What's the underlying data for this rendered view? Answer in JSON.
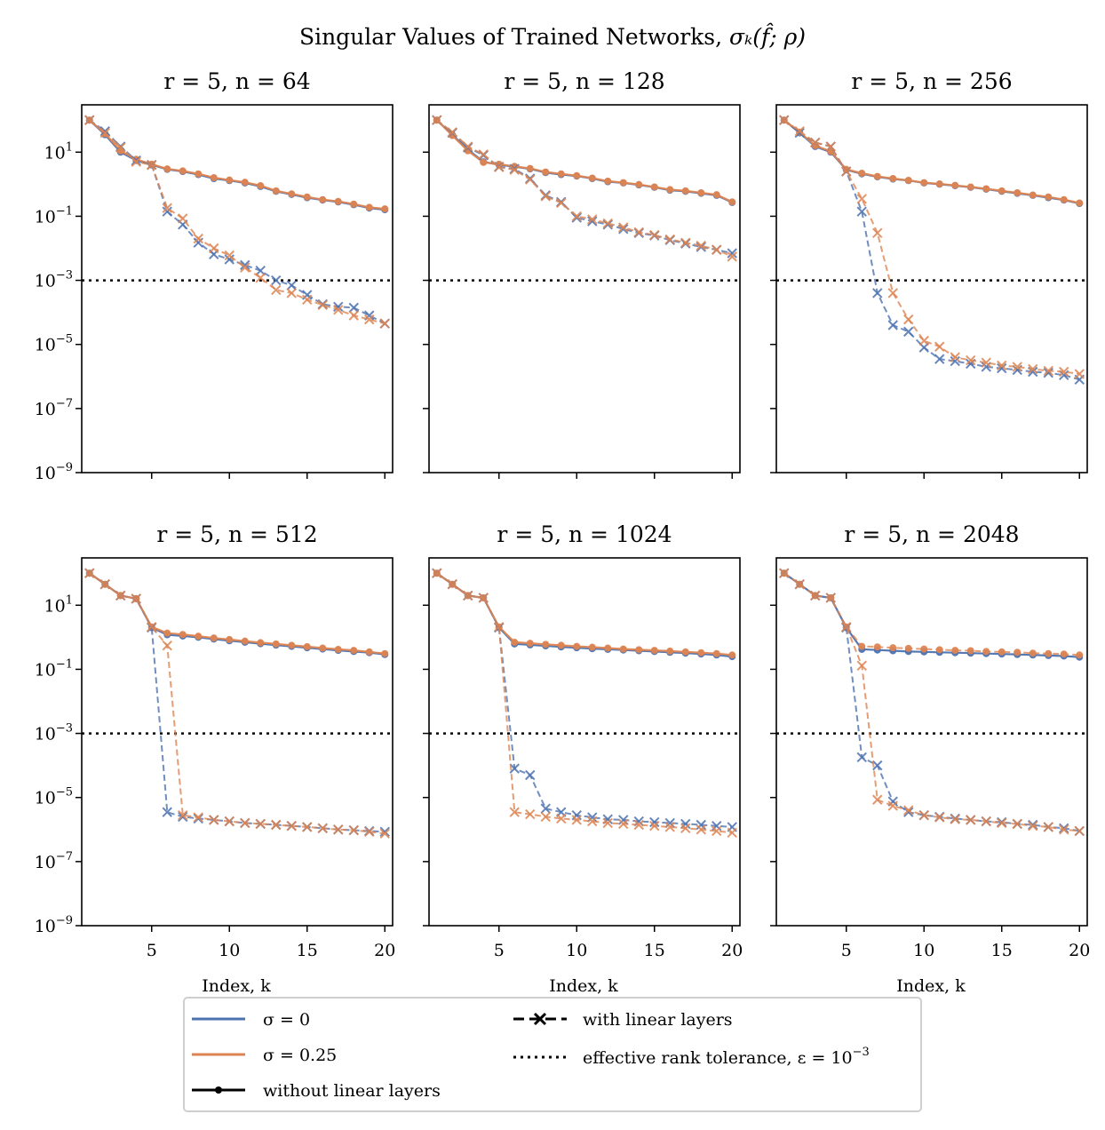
{
  "figure": {
    "suptitle_main": "Singular Values of Trained Networks, ",
    "suptitle_math": "σₖ(f̂; ρ)",
    "xlabel": "Index, k",
    "colors": {
      "sigma0": "#4c72b0",
      "sigma025": "#dd8452",
      "tolerance": "#000000"
    },
    "legend": {
      "sigma0": "σ = 0",
      "sigma025": "σ = 0.25",
      "without_linear": "without linear layers",
      "with_linear": "with linear layers",
      "tolerance": "effective rank tolerance, ε = 10",
      "tolerance_exp": "−3"
    }
  },
  "chart_data": [
    {
      "type": "line",
      "title": "r = 5, n = 64",
      "yscale": "log",
      "ylim": [
        1e-09,
        300
      ],
      "xlim": [
        0.5,
        20.5
      ],
      "xticks": [
        5,
        10,
        15,
        20
      ],
      "yticks_exp": [
        1,
        -1,
        -3,
        -5,
        -7,
        -9
      ],
      "tolerance": 0.001,
      "x": [
        1,
        2,
        3,
        4,
        5,
        6,
        7,
        8,
        9,
        10,
        11,
        12,
        13,
        14,
        15,
        16,
        17,
        18,
        19,
        20
      ],
      "series": [
        {
          "name": "σ = 0, without linear layers",
          "color": "sigma0",
          "style": "solid",
          "marker": "dot",
          "values": [
            100,
            35,
            10,
            5.5,
            4,
            2.9,
            2.5,
            2,
            1.5,
            1.3,
            1.1,
            0.85,
            0.6,
            0.48,
            0.38,
            0.32,
            0.28,
            0.23,
            0.18,
            0.16
          ]
        },
        {
          "name": "σ = 0.25, without linear layers",
          "color": "sigma025",
          "style": "solid",
          "marker": "dot",
          "values": [
            100,
            38,
            11,
            6,
            4.2,
            3,
            2.6,
            2.1,
            1.6,
            1.35,
            1.15,
            0.9,
            0.62,
            0.5,
            0.4,
            0.33,
            0.29,
            0.24,
            0.19,
            0.17
          ]
        },
        {
          "name": "σ = 0, with linear layers",
          "color": "sigma0",
          "style": "dashed",
          "marker": "x",
          "values": [
            100,
            45,
            15,
            5.5,
            4,
            0.14,
            0.055,
            0.015,
            0.0065,
            0.0045,
            0.003,
            0.002,
            0.001,
            0.0007,
            0.00035,
            0.00018,
            0.00015,
            0.00014,
            8e-05,
            4.5e-05
          ]
        },
        {
          "name": "σ = 0.25, with linear layers",
          "color": "sigma025",
          "style": "dashed",
          "marker": "x",
          "values": [
            100,
            40,
            14,
            5,
            4,
            0.18,
            0.085,
            0.02,
            0.01,
            0.006,
            0.0025,
            0.0012,
            0.0005,
            0.0004,
            0.00025,
            0.00017,
            0.00012,
            8e-05,
            6e-05,
            4.5e-05
          ]
        }
      ]
    },
    {
      "type": "line",
      "title": "r = 5, n = 128",
      "yscale": "log",
      "ylim": [
        1e-09,
        300
      ],
      "xlim": [
        0.5,
        20.5
      ],
      "xticks": [
        5,
        10,
        15,
        20
      ],
      "yticks_exp": [
        1,
        -1,
        -3,
        -5,
        -7,
        -9
      ],
      "tolerance": 0.001,
      "x": [
        1,
        2,
        3,
        4,
        5,
        6,
        7,
        8,
        9,
        10,
        11,
        12,
        13,
        14,
        15,
        16,
        17,
        18,
        19,
        20
      ],
      "series": [
        {
          "name": "σ = 0, without linear layers",
          "color": "sigma0",
          "style": "solid",
          "marker": "dot",
          "values": [
            100,
            35,
            12,
            5,
            4,
            3.5,
            3,
            2.3,
            2,
            1.8,
            1.5,
            1.2,
            1.1,
            0.95,
            0.8,
            0.65,
            0.6,
            0.52,
            0.45,
            0.27
          ]
        },
        {
          "name": "σ = 0.25, without linear layers",
          "color": "sigma025",
          "style": "solid",
          "marker": "dot",
          "values": [
            100,
            33,
            11,
            4.8,
            4.2,
            3.6,
            3.1,
            2.4,
            2.1,
            1.85,
            1.55,
            1.25,
            1.12,
            0.98,
            0.82,
            0.68,
            0.62,
            0.54,
            0.47,
            0.28
          ]
        },
        {
          "name": "σ = 0, with linear layers",
          "color": "sigma0",
          "style": "dashed",
          "marker": "x",
          "values": [
            100,
            40,
            14,
            8,
            3.5,
            3,
            1.5,
            0.45,
            0.28,
            0.09,
            0.07,
            0.055,
            0.04,
            0.03,
            0.025,
            0.018,
            0.014,
            0.011,
            0.009,
            0.007
          ]
        },
        {
          "name": "σ = 0.25, with linear layers",
          "color": "sigma025",
          "style": "dashed",
          "marker": "x",
          "values": [
            100,
            42,
            15,
            8.5,
            3.4,
            2.8,
            1.4,
            0.42,
            0.26,
            0.1,
            0.08,
            0.06,
            0.045,
            0.032,
            0.026,
            0.019,
            0.015,
            0.012,
            0.009,
            0.0055
          ]
        }
      ]
    },
    {
      "type": "line",
      "title": "r = 5, n = 256",
      "yscale": "log",
      "ylim": [
        1e-09,
        300
      ],
      "xlim": [
        0.5,
        20.5
      ],
      "xticks": [
        5,
        10,
        15,
        20
      ],
      "yticks_exp": [
        1,
        -1,
        -3,
        -5,
        -7,
        -9
      ],
      "tolerance": 0.001,
      "x": [
        1,
        2,
        3,
        4,
        5,
        6,
        7,
        8,
        9,
        10,
        11,
        12,
        13,
        14,
        15,
        16,
        17,
        18,
        19,
        20
      ],
      "series": [
        {
          "name": "σ = 0, without linear layers",
          "color": "sigma0",
          "style": "solid",
          "marker": "dot",
          "values": [
            100,
            40,
            15,
            10,
            2.8,
            2.1,
            1.7,
            1.45,
            1.3,
            1.1,
            1.0,
            0.9,
            0.8,
            0.7,
            0.6,
            0.52,
            0.45,
            0.38,
            0.32,
            0.25
          ]
        },
        {
          "name": "σ = 0.25, without linear layers",
          "color": "sigma025",
          "style": "solid",
          "marker": "dot",
          "values": [
            100,
            42,
            16,
            10.5,
            2.9,
            2.2,
            1.75,
            1.5,
            1.32,
            1.12,
            1.02,
            0.92,
            0.82,
            0.72,
            0.62,
            0.54,
            0.46,
            0.4,
            0.33,
            0.26
          ]
        },
        {
          "name": "σ = 0, with linear layers",
          "color": "sigma0",
          "style": "dashed",
          "marker": "x",
          "values": [
            100,
            40,
            20,
            15,
            2.5,
            0.14,
            0.0004,
            4e-05,
            2.5e-05,
            8e-06,
            3.5e-06,
            3e-06,
            2.5e-06,
            2e-06,
            1.8e-06,
            1.6e-06,
            1.4e-06,
            1.3e-06,
            1.1e-06,
            8e-07
          ]
        },
        {
          "name": "σ = 0.25, with linear layers",
          "color": "sigma025",
          "style": "dashed",
          "marker": "x",
          "values": [
            100,
            45,
            20,
            15,
            2.5,
            0.35,
            0.03,
            0.0004,
            6e-05,
            1.3e-05,
            8.5e-06,
            4e-06,
            3.2e-06,
            2.7e-06,
            2.2e-06,
            2e-06,
            1.7e-06,
            1.5e-06,
            1.4e-06,
            1.2e-06
          ]
        }
      ]
    },
    {
      "type": "line",
      "title": "r = 5, n = 512",
      "yscale": "log",
      "ylim": [
        1e-09,
        300
      ],
      "xlim": [
        0.5,
        20.5
      ],
      "xticks": [
        5,
        10,
        15,
        20
      ],
      "yticks_exp": [
        1,
        -1,
        -3,
        -5,
        -7,
        -9
      ],
      "tolerance": 0.001,
      "x": [
        1,
        2,
        3,
        4,
        5,
        6,
        7,
        8,
        9,
        10,
        11,
        12,
        13,
        14,
        15,
        16,
        17,
        18,
        19,
        20
      ],
      "series": [
        {
          "name": "σ = 0, without linear layers",
          "color": "sigma0",
          "style": "solid",
          "marker": "dot",
          "values": [
            100,
            45,
            20,
            16,
            2,
            1.2,
            1.1,
            1.0,
            0.88,
            0.78,
            0.7,
            0.63,
            0.57,
            0.52,
            0.47,
            0.43,
            0.39,
            0.36,
            0.33,
            0.29
          ]
        },
        {
          "name": "σ = 0.25, without linear layers",
          "color": "sigma025",
          "style": "solid",
          "marker": "dot",
          "values": [
            100,
            45,
            20,
            16,
            2.1,
            1.35,
            1.22,
            1.08,
            0.95,
            0.85,
            0.76,
            0.68,
            0.62,
            0.56,
            0.51,
            0.46,
            0.42,
            0.39,
            0.35,
            0.31
          ]
        },
        {
          "name": "σ = 0, with linear layers",
          "color": "sigma0",
          "style": "dashed",
          "marker": "x",
          "values": [
            100,
            45,
            20,
            16,
            2,
            3.5e-06,
            2.5e-06,
            2.2e-06,
            2e-06,
            1.8e-06,
            1.6e-06,
            1.5e-06,
            1.4e-06,
            1.3e-06,
            1.2e-06,
            1.1e-06,
            1e-06,
            9.5e-07,
            9e-07,
            8.5e-07
          ]
        },
        {
          "name": "σ = 0.25, with linear layers",
          "color": "sigma025",
          "style": "dashed",
          "marker": "x",
          "values": [
            100,
            45,
            20,
            16,
            2.1,
            0.55,
            2.8e-06,
            2.4e-06,
            2e-06,
            1.8e-06,
            1.6e-06,
            1.5e-06,
            1.4e-06,
            1.3e-06,
            1.2e-06,
            1.1e-06,
            1e-06,
            9.5e-07,
            8.5e-07,
            7.5e-07
          ]
        }
      ]
    },
    {
      "type": "line",
      "title": "r = 5, n = 1024",
      "yscale": "log",
      "ylim": [
        1e-09,
        300
      ],
      "xlim": [
        0.5,
        20.5
      ],
      "xticks": [
        5,
        10,
        15,
        20
      ],
      "yticks_exp": [
        1,
        -1,
        -3,
        -5,
        -7,
        -9
      ],
      "tolerance": 0.001,
      "x": [
        1,
        2,
        3,
        4,
        5,
        6,
        7,
        8,
        9,
        10,
        11,
        12,
        13,
        14,
        15,
        16,
        17,
        18,
        19,
        20
      ],
      "series": [
        {
          "name": "σ = 0, without linear layers",
          "color": "sigma0",
          "style": "solid",
          "marker": "dot",
          "values": [
            100,
            45,
            20,
            17,
            2,
            0.62,
            0.58,
            0.54,
            0.5,
            0.47,
            0.44,
            0.42,
            0.4,
            0.38,
            0.36,
            0.34,
            0.32,
            0.3,
            0.28,
            0.25
          ]
        },
        {
          "name": "σ = 0.25, without linear layers",
          "color": "sigma025",
          "style": "solid",
          "marker": "dot",
          "values": [
            100,
            45,
            20,
            17,
            2.1,
            0.7,
            0.65,
            0.6,
            0.56,
            0.52,
            0.49,
            0.46,
            0.43,
            0.41,
            0.39,
            0.37,
            0.35,
            0.33,
            0.31,
            0.28
          ]
        },
        {
          "name": "σ = 0, with linear layers",
          "color": "sigma0",
          "style": "dashed",
          "marker": "x",
          "values": [
            100,
            45,
            20,
            17,
            2,
            8e-05,
            5e-05,
            4.5e-06,
            3.5e-06,
            2.8e-06,
            2.4e-06,
            2.1e-06,
            2e-06,
            1.8e-06,
            1.7e-06,
            1.6e-06,
            1.5e-06,
            1.4e-06,
            1.3e-06,
            1.2e-06
          ]
        },
        {
          "name": "σ = 0.25, with linear layers",
          "color": "sigma025",
          "style": "dashed",
          "marker": "x",
          "values": [
            100,
            45,
            20,
            17,
            2.1,
            3.5e-06,
            3e-06,
            2.5e-06,
            2.2e-06,
            2e-06,
            1.8e-06,
            1.6e-06,
            1.5e-06,
            1.4e-06,
            1.3e-06,
            1.2e-06,
            1.1e-06,
            1e-06,
            9e-07,
            8e-07
          ]
        }
      ]
    },
    {
      "type": "line",
      "title": "r = 5, n = 2048",
      "yscale": "log",
      "ylim": [
        1e-09,
        300
      ],
      "xlim": [
        0.5,
        20.5
      ],
      "xticks": [
        5,
        10,
        15,
        20
      ],
      "yticks_exp": [
        1,
        -1,
        -3,
        -5,
        -7,
        -9
      ],
      "tolerance": 0.001,
      "x": [
        1,
        2,
        3,
        4,
        5,
        6,
        7,
        8,
        9,
        10,
        11,
        12,
        13,
        14,
        15,
        16,
        17,
        18,
        19,
        20
      ],
      "series": [
        {
          "name": "σ = 0, without linear layers",
          "color": "sigma0",
          "style": "solid",
          "marker": "dot",
          "values": [
            100,
            45,
            20,
            17,
            2,
            0.42,
            0.4,
            0.38,
            0.36,
            0.35,
            0.34,
            0.33,
            0.32,
            0.31,
            0.3,
            0.29,
            0.28,
            0.27,
            0.26,
            0.24
          ]
        },
        {
          "name": "σ = 0.25, without linear layers",
          "color": "sigma025",
          "style": "dashed",
          "marker": "dot",
          "values": [
            100,
            45,
            20,
            17,
            2.1,
            0.52,
            0.5,
            0.47,
            0.45,
            0.43,
            0.41,
            0.39,
            0.38,
            0.36,
            0.35,
            0.34,
            0.32,
            0.31,
            0.3,
            0.28
          ]
        },
        {
          "name": "σ = 0, with linear layers",
          "color": "sigma0",
          "style": "dashed",
          "marker": "x",
          "values": [
            100,
            45,
            20,
            17,
            2,
            0.00018,
            0.0001,
            7.5e-06,
            3.5e-06,
            2.8e-06,
            2.5e-06,
            2.2e-06,
            2e-06,
            1.8e-06,
            1.7e-06,
            1.5e-06,
            1.4e-06,
            1.2e-06,
            1.1e-06,
            9e-07
          ]
        },
        {
          "name": "σ = 0.25, with linear layers",
          "color": "sigma025",
          "style": "dashed",
          "marker": "x",
          "values": [
            100,
            45,
            20,
            17,
            2.1,
            0.13,
            8.5e-06,
            5.5e-06,
            4e-06,
            2.8e-06,
            2.4e-06,
            2.1e-06,
            2e-06,
            1.8e-06,
            1.6e-06,
            1.5e-06,
            1.3e-06,
            1.2e-06,
            1e-06,
            9e-07
          ]
        }
      ]
    }
  ]
}
